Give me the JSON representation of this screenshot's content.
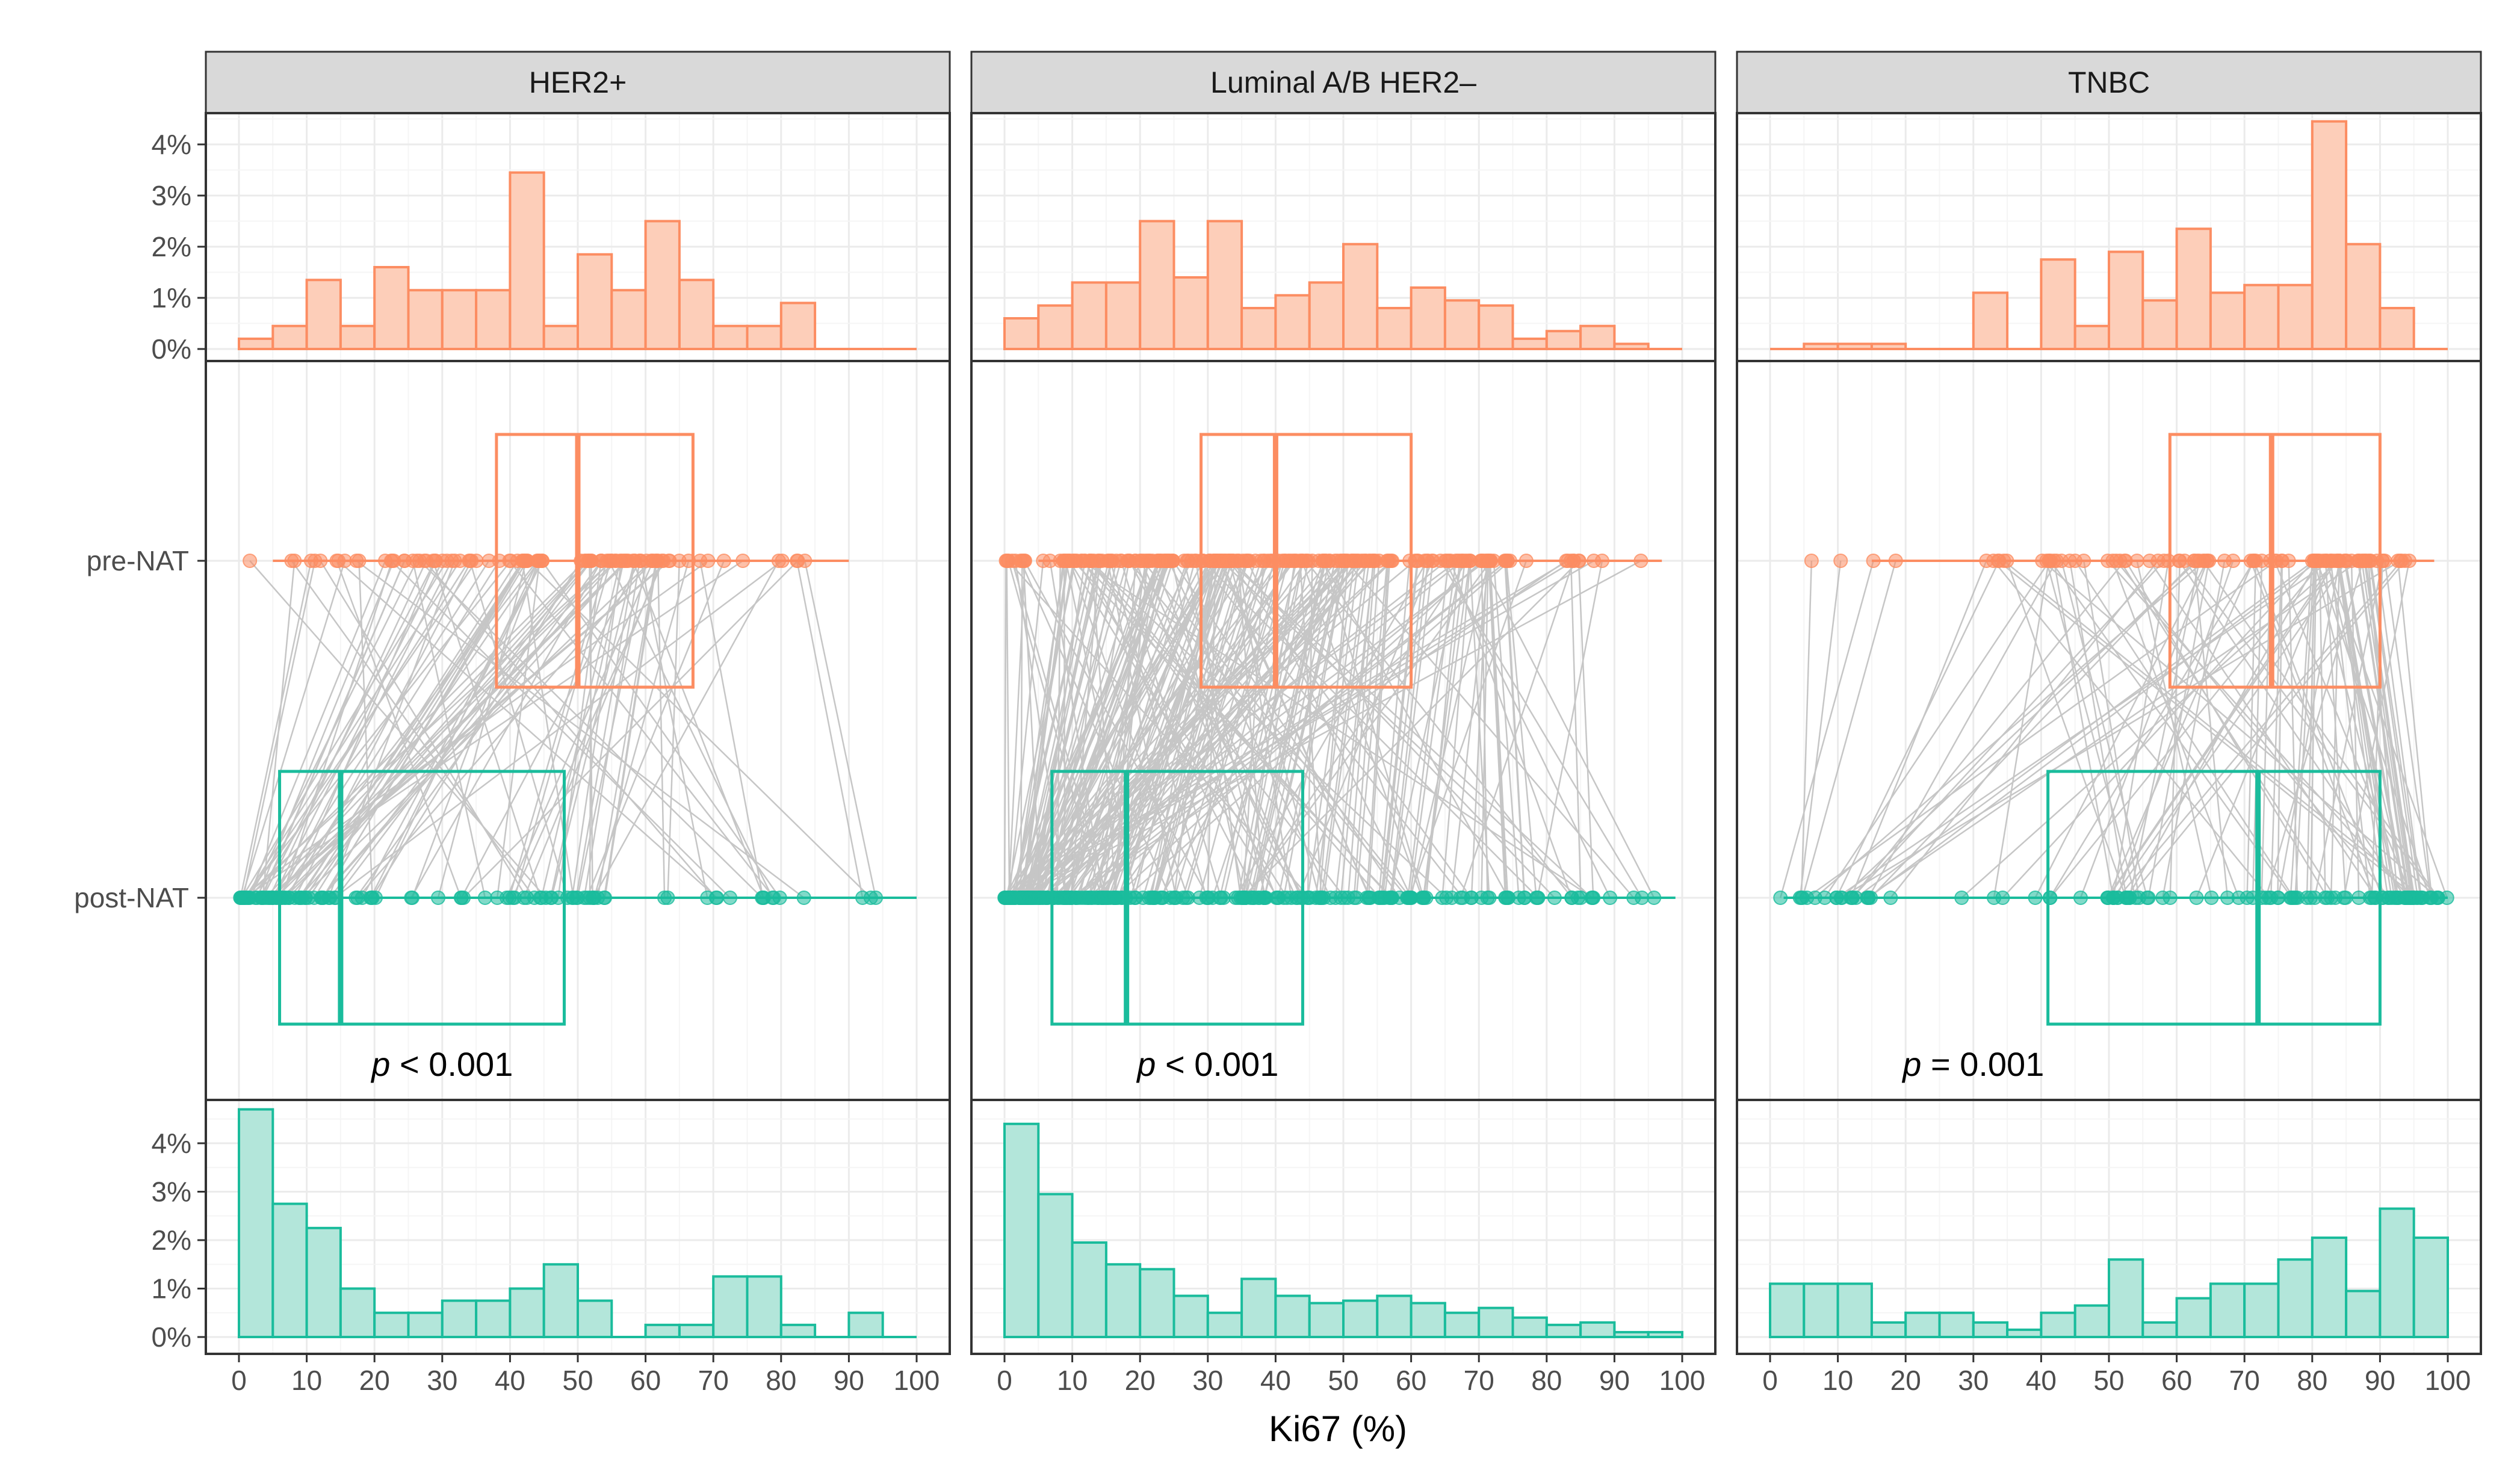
{
  "chart_data": {
    "type": "histogram-boxplot-paired",
    "xlabel": "Ki67 (%)",
    "xlim": [
      0,
      100
    ],
    "x_ticks": [
      0,
      10,
      20,
      30,
      40,
      50,
      60,
      70,
      80,
      90,
      100
    ],
    "hist_y_ticks": [
      0,
      1,
      2,
      3,
      4
    ],
    "hist_y_tick_labels": [
      "0%",
      "1%",
      "2%",
      "3%",
      "4%"
    ],
    "hist_ylim": [
      0,
      4.6
    ],
    "hist_bin_width": 5,
    "group_labels": [
      "pre-NAT",
      "post-NAT"
    ],
    "colors": {
      "pre": "#FC8D62",
      "pre_fill": "#FDCEB9",
      "post": "#1ABC9C",
      "post_fill": "#B3E6DA",
      "lines": "#BDBDBD",
      "strip": "#D9D9D9",
      "grid_major": "#EBEBEB",
      "grid_minor": "#F5F5F5",
      "frame": "#333333"
    },
    "panels": [
      {
        "title": "HER2+",
        "p_prefix": "p",
        "p_rest": " < 0.001",
        "pre_hist": [
          0.2,
          0.45,
          1.35,
          0.45,
          1.6,
          1.15,
          1.15,
          1.15,
          3.45,
          0.45,
          1.85,
          1.15,
          2.5,
          1.35,
          0.45,
          0.45,
          0.9,
          0,
          0,
          0
        ],
        "post_hist": [
          4.7,
          2.75,
          2.25,
          1.0,
          0.5,
          0.5,
          0.75,
          0.75,
          1.0,
          1.5,
          0.75,
          0,
          0.25,
          0.25,
          1.25,
          1.25,
          0.25,
          0,
          0.5,
          0
        ],
        "pre_box": {
          "q1": 38,
          "median": 50,
          "q3": 67,
          "min": 5,
          "max": 90
        },
        "post_box": {
          "q1": 6,
          "median": 15,
          "q3": 48,
          "min": 1,
          "max": 100
        }
      },
      {
        "title": "Luminal A/B HER2–",
        "p_prefix": "p",
        "p_rest": " < 0.001",
        "pre_hist": [
          0.6,
          0.85,
          1.3,
          1.3,
          2.5,
          1.4,
          2.5,
          0.8,
          1.05,
          1.3,
          2.05,
          0.8,
          1.2,
          0.95,
          0.85,
          0.2,
          0.35,
          0.45,
          0.1,
          0
        ],
        "post_hist": [
          4.4,
          2.95,
          1.95,
          1.5,
          1.4,
          0.85,
          0.5,
          1.2,
          0.85,
          0.7,
          0.75,
          0.85,
          0.7,
          0.5,
          0.6,
          0.4,
          0.25,
          0.3,
          0.1,
          0.1
        ],
        "pre_box": {
          "q1": 29,
          "median": 40,
          "q3": 60,
          "min": 5,
          "max": 97
        },
        "post_box": {
          "q1": 7,
          "median": 18,
          "q3": 44,
          "min": 0,
          "max": 99
        }
      },
      {
        "title": "TNBC",
        "p_prefix": "p",
        "p_rest": " = 0.001",
        "pre_hist": [
          0,
          0.1,
          0.1,
          0.1,
          0,
          0,
          1.1,
          0,
          1.75,
          0.45,
          1.9,
          0.95,
          2.35,
          1.1,
          1.25,
          1.25,
          4.45,
          2.05,
          0.8,
          0
        ],
        "post_hist": [
          1.1,
          1.1,
          1.1,
          0.3,
          0.5,
          0.5,
          0.3,
          0.15,
          0.5,
          0.65,
          1.6,
          0.3,
          0.8,
          1.1,
          1.1,
          1.6,
          2.05,
          0.95,
          2.65,
          2.05
        ],
        "pre_box": {
          "q1": 59,
          "median": 74,
          "q3": 90,
          "min": 15,
          "max": 98
        },
        "post_box": {
          "q1": 41,
          "median": 72,
          "q3": 90,
          "min": 2,
          "max": 100
        }
      }
    ]
  }
}
